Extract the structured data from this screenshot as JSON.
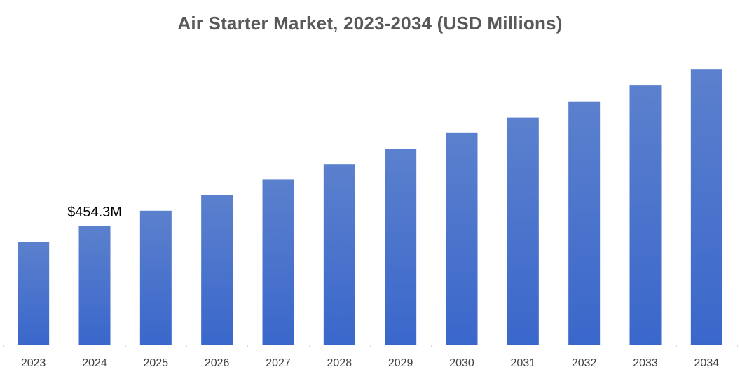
{
  "chart_data": {
    "type": "bar",
    "title": "Air Starter Market, 2023-2034 (USD Millions)",
    "xlabel": "",
    "ylabel": "",
    "categories": [
      "2023",
      "2024",
      "2025",
      "2026",
      "2027",
      "2028",
      "2029",
      "2030",
      "2031",
      "2032",
      "2033",
      "2034"
    ],
    "values": [
      394.6,
      454.3,
      514.0,
      573.6,
      633.3,
      693.0,
      752.7,
      812.3,
      872.0,
      933.6,
      994.3,
      1056.0
    ],
    "ylim": [
      0,
      1056
    ],
    "grid": false,
    "legend": "none",
    "annotations": [
      {
        "category": "2024",
        "text": "$454.3M"
      }
    ],
    "colors": {
      "bar_top": "#5b80cd",
      "bar_bottom": "#3a67cb",
      "axis": "#d9d9d9"
    }
  }
}
